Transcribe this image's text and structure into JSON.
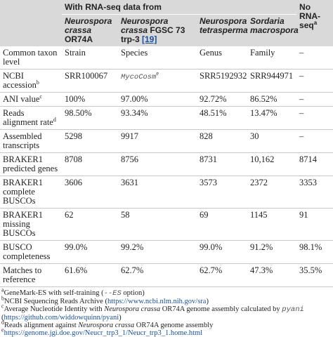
{
  "table": {
    "group_header": "With RNA-seq data from",
    "no_rnaseq": {
      "text": "No RNA-seq",
      "sup": "a"
    },
    "columns": [
      {
        "species": "Neurospora crassa",
        "strain": "OR74A"
      },
      {
        "species": "Neurospora crassa",
        "strain": "FGSC 73 trp-3",
        "ref": "[19]"
      },
      {
        "species": "Neurospora tetrasperma"
      },
      {
        "species": "Sordaria macrospora"
      }
    ],
    "rows": [
      {
        "label": "Common taxon level",
        "cells": [
          "Strain",
          "Species",
          "Genus",
          "Family",
          "–"
        ]
      },
      {
        "label": "NCBI accession",
        "sup": "b",
        "cells": [
          "SRR100067",
          {
            "text": "MycoCosm",
            "sup": "e"
          },
          "SRR5192932",
          "SRR944971",
          "–"
        ]
      },
      {
        "label": "ANI value",
        "sup": "c",
        "cells": [
          "100%",
          "97.00%",
          "92.72%",
          "86.52%",
          "–"
        ]
      },
      {
        "label": "Reads alignment rate",
        "sup": "d",
        "cells": [
          "98.50%",
          "93.34%",
          "48.51%",
          "13.47%",
          "–"
        ]
      },
      {
        "label": "Assembled transcripts",
        "cells": [
          "5298",
          "9917",
          "828",
          "30",
          "–"
        ]
      },
      {
        "label": "BRAKER1 predicted genes",
        "cells": [
          "8708",
          "8756",
          "8731",
          "10,162",
          "8714"
        ]
      },
      {
        "label": "BRAKER1 complete BUSCOs",
        "cells": [
          "3606",
          "3631",
          "3573",
          "2372",
          "3353"
        ]
      },
      {
        "label": "BRAKER1 missing BUSCOs",
        "cells": [
          "62",
          "58",
          "69",
          "1145",
          "91"
        ]
      },
      {
        "label": "BUSCO completeness",
        "cells": [
          "99.0%",
          "99.2%",
          "99.0%",
          "91.2%",
          "98.1%"
        ]
      },
      {
        "label": "Matches to reference",
        "cells": [
          "61.6%",
          "62.7%",
          "62.7%",
          "47.3%",
          "35.5%"
        ]
      }
    ]
  },
  "footnotes": [
    {
      "mark": "a",
      "parts": [
        {
          "text": "GeneMark-ES with self-training ("
        },
        {
          "text": "--ES",
          "style": "mono"
        },
        {
          "text": " option)"
        }
      ]
    },
    {
      "mark": "b",
      "parts": [
        {
          "text": "NCBI Sequencing Reads Archive ("
        },
        {
          "text": "https://www.ncbi.nlm.nih.gov/sra",
          "style": "link"
        },
        {
          "text": ")"
        }
      ]
    },
    {
      "mark": "c",
      "parts": [
        {
          "text": "Average Nucleotide Identity with "
        },
        {
          "text": "Neurospora crassa",
          "style": "i"
        },
        {
          "text": " OR74A genome assembly calculated by "
        },
        {
          "text": "pyani",
          "style": "mono"
        },
        {
          "text": " ("
        },
        {
          "text": "https://github.com/widdowquinn/pyani",
          "style": "link"
        },
        {
          "text": ")"
        }
      ]
    },
    {
      "mark": "d",
      "parts": [
        {
          "text": "Reads alignment against "
        },
        {
          "text": "Neurospora crassa",
          "style": "i"
        },
        {
          "text": " OR74A genome assembly"
        }
      ]
    },
    {
      "mark": "e",
      "parts": [
        {
          "text": "https://genome.jgi.doe.gov/Neucr_trp3_1/Neucr_trp3_1.home.html",
          "style": "link"
        }
      ]
    }
  ]
}
